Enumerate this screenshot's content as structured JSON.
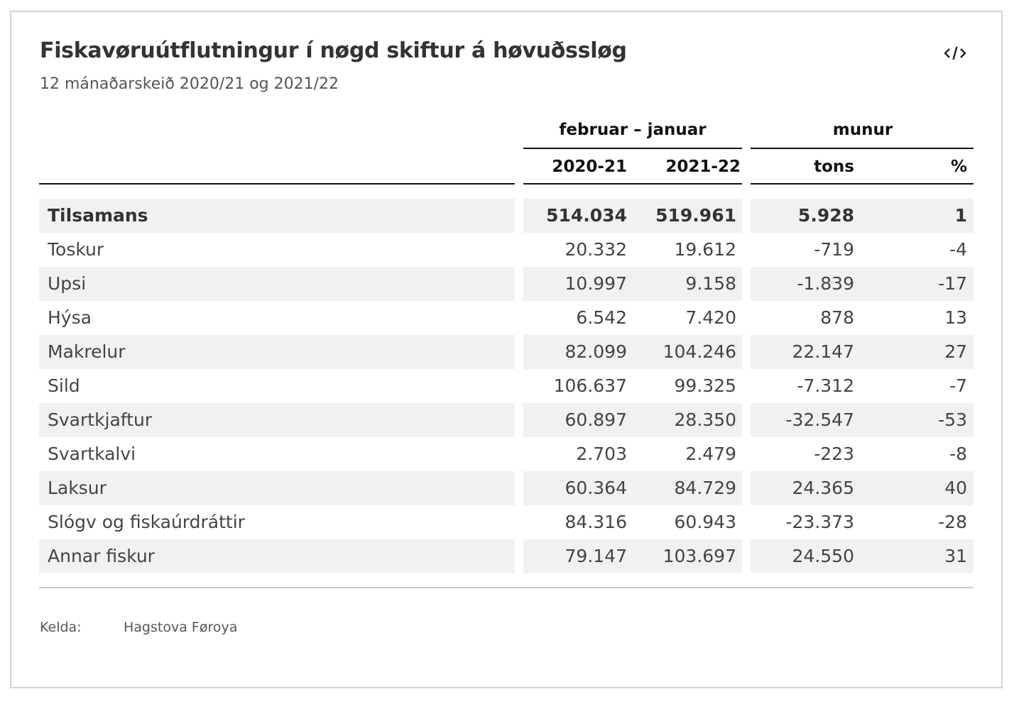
{
  "header": {
    "title": "Fiskavøruútflutningur í nøgd skiftur á høvuðssløg",
    "subtitle": "12 mánaðarskeið 2020/21 og 2021/22",
    "embed_icon": "code-embed-icon"
  },
  "chart_data": {
    "type": "table",
    "title": "Fiskavøruútflutningur í nøgd skiftur á høvuðssløg",
    "subtitle": "12 mánaðarskeið 2020/21 og 2021/22",
    "group_headers": [
      "februar – januar",
      "munur"
    ],
    "columns": [
      "",
      "2020-21",
      "2021-22",
      "tons",
      "%"
    ],
    "rows": [
      {
        "label": "Tilsamans",
        "values": [
          "514.034",
          "519.961",
          "5.928",
          "1"
        ],
        "bold": true
      },
      {
        "label": "Toskur",
        "values": [
          "20.332",
          "19.612",
          "-719",
          "-4"
        ]
      },
      {
        "label": "Upsi",
        "values": [
          "10.997",
          "9.158",
          "-1.839",
          "-17"
        ]
      },
      {
        "label": "Hýsa",
        "values": [
          "6.542",
          "7.420",
          "878",
          "13"
        ]
      },
      {
        "label": "Makrelur",
        "values": [
          "82.099",
          "104.246",
          "22.147",
          "27"
        ]
      },
      {
        "label": "Sild",
        "values": [
          "106.637",
          "99.325",
          "-7.312",
          "-7"
        ]
      },
      {
        "label": "Svartkjaftur",
        "values": [
          "60.897",
          "28.350",
          "-32.547",
          "-53"
        ]
      },
      {
        "label": "Svartkalvi",
        "values": [
          "2.703",
          "2.479",
          "-223",
          "-8"
        ]
      },
      {
        "label": "Laksur",
        "values": [
          "60.364",
          "84.729",
          "24.365",
          "40"
        ]
      },
      {
        "label": "Slógv og fiskaúrdráttir",
        "values": [
          "84.316",
          "60.943",
          "-23.373",
          "-28"
        ]
      },
      {
        "label": "Annar fiskur",
        "values": [
          "79.147",
          "103.697",
          "24.550",
          "31"
        ]
      }
    ]
  },
  "source": {
    "label": "Kelda:",
    "value": "Hagstova Føroya"
  }
}
